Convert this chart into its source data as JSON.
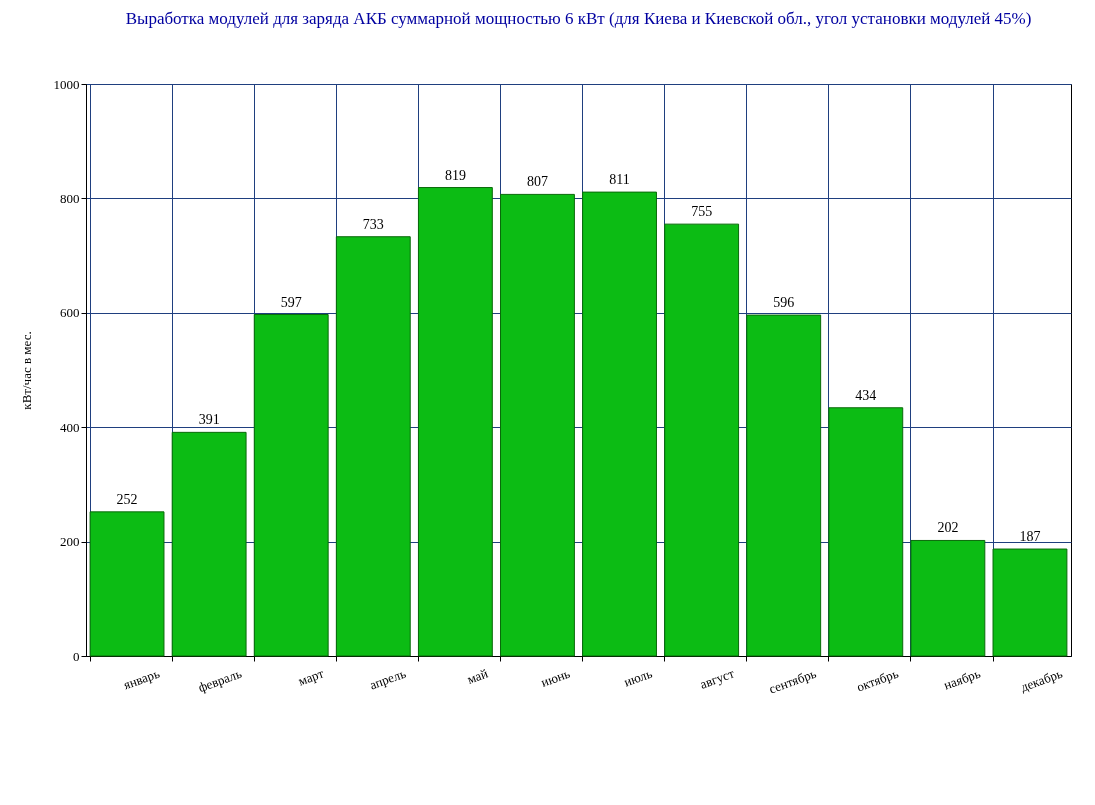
{
  "chart_data": {
    "type": "bar",
    "title": "Выработка модулей для заряда АКБ суммарной мощностью 6 кВт (для Киева и Киевской обл., угол установки модулей 45%)",
    "ylabel": "кВт/час в мес.",
    "categories": [
      "январь",
      "февраль",
      "март",
      "апрель",
      "май",
      "июнь",
      "июль",
      "август",
      "сентябрь",
      "октябрь",
      "наябрь",
      "декабрь"
    ],
    "values": [
      252,
      391,
      597,
      733,
      819,
      807,
      811,
      755,
      596,
      434,
      202,
      187
    ],
    "color": "#0cbc14",
    "ylim": [
      0,
      1000
    ],
    "yticks": [
      0,
      200,
      400,
      600,
      800,
      1000
    ],
    "grid": true,
    "data_labels": true
  }
}
